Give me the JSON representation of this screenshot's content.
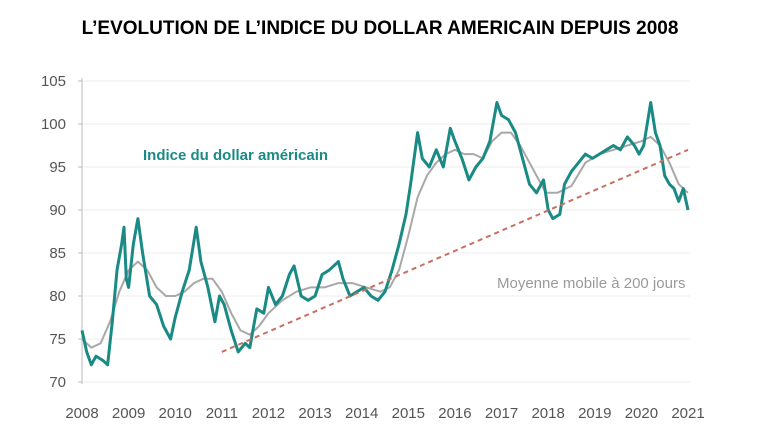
{
  "chart_data": {
    "type": "line",
    "title": "L’EVOLUTION DE L’INDICE DU DOLLAR AMERICAIN DEPUIS 2008",
    "xlabel": "",
    "ylabel": "",
    "xlim": [
      2008,
      2021
    ],
    "ylim": [
      70,
      105
    ],
    "x_ticks": [
      "2008",
      "2009",
      "2010",
      "2011",
      "2012",
      "2013",
      "2014",
      "2015",
      "2016",
      "2017",
      "2018",
      "2019",
      "2020",
      "2021"
    ],
    "y_ticks": [
      70,
      75,
      80,
      85,
      90,
      95,
      100,
      105
    ],
    "grid": "horizontal",
    "colors": {
      "index": "#1a8a85",
      "moving_average": "#a8a8a8",
      "trend": "#c87060"
    },
    "series": [
      {
        "name": "Indice du dollar américain",
        "points": [
          [
            2008.0,
            76
          ],
          [
            2008.1,
            73.5
          ],
          [
            2008.2,
            72
          ],
          [
            2008.3,
            73
          ],
          [
            2008.45,
            72.5
          ],
          [
            2008.55,
            72
          ],
          [
            2008.65,
            77
          ],
          [
            2008.75,
            83
          ],
          [
            2008.85,
            86
          ],
          [
            2008.9,
            88
          ],
          [
            2008.95,
            82
          ],
          [
            2009.0,
            81
          ],
          [
            2009.1,
            86
          ],
          [
            2009.2,
            89
          ],
          [
            2009.3,
            85
          ],
          [
            2009.45,
            80
          ],
          [
            2009.6,
            79
          ],
          [
            2009.75,
            76.5
          ],
          [
            2009.9,
            75
          ],
          [
            2010.0,
            77.5
          ],
          [
            2010.15,
            80.5
          ],
          [
            2010.3,
            83
          ],
          [
            2010.45,
            88
          ],
          [
            2010.55,
            84
          ],
          [
            2010.7,
            81
          ],
          [
            2010.85,
            77
          ],
          [
            2010.95,
            80
          ],
          [
            2011.05,
            79
          ],
          [
            2011.2,
            76
          ],
          [
            2011.35,
            73.5
          ],
          [
            2011.5,
            74.5
          ],
          [
            2011.6,
            74
          ],
          [
            2011.75,
            78.5
          ],
          [
            2011.9,
            78
          ],
          [
            2012.0,
            81
          ],
          [
            2012.15,
            79
          ],
          [
            2012.3,
            80
          ],
          [
            2012.45,
            82.5
          ],
          [
            2012.55,
            83.5
          ],
          [
            2012.7,
            80
          ],
          [
            2012.85,
            79.5
          ],
          [
            2013.0,
            80
          ],
          [
            2013.15,
            82.5
          ],
          [
            2013.3,
            83
          ],
          [
            2013.5,
            84
          ],
          [
            2013.6,
            82
          ],
          [
            2013.75,
            80
          ],
          [
            2013.9,
            80.5
          ],
          [
            2014.05,
            81
          ],
          [
            2014.2,
            80
          ],
          [
            2014.35,
            79.5
          ],
          [
            2014.5,
            80.5
          ],
          [
            2014.65,
            83
          ],
          [
            2014.8,
            86
          ],
          [
            2014.95,
            89.5
          ],
          [
            2015.05,
            93
          ],
          [
            2015.2,
            99
          ],
          [
            2015.3,
            96
          ],
          [
            2015.45,
            95
          ],
          [
            2015.6,
            97
          ],
          [
            2015.75,
            95
          ],
          [
            2015.9,
            99.5
          ],
          [
            2016.0,
            98
          ],
          [
            2016.15,
            96
          ],
          [
            2016.3,
            93.5
          ],
          [
            2016.45,
            95
          ],
          [
            2016.6,
            96
          ],
          [
            2016.75,
            98
          ],
          [
            2016.9,
            102.5
          ],
          [
            2017.0,
            101
          ],
          [
            2017.15,
            100.5
          ],
          [
            2017.3,
            99
          ],
          [
            2017.45,
            96
          ],
          [
            2017.6,
            93
          ],
          [
            2017.75,
            92
          ],
          [
            2017.9,
            93.5
          ],
          [
            2018.0,
            90
          ],
          [
            2018.1,
            89
          ],
          [
            2018.25,
            89.5
          ],
          [
            2018.35,
            93
          ],
          [
            2018.5,
            94.5
          ],
          [
            2018.65,
            95.5
          ],
          [
            2018.8,
            96.5
          ],
          [
            2018.95,
            96
          ],
          [
            2019.1,
            96.5
          ],
          [
            2019.25,
            97
          ],
          [
            2019.4,
            97.5
          ],
          [
            2019.55,
            97
          ],
          [
            2019.7,
            98.5
          ],
          [
            2019.85,
            97.5
          ],
          [
            2019.95,
            96.5
          ],
          [
            2020.05,
            97.5
          ],
          [
            2020.2,
            102.5
          ],
          [
            2020.3,
            99
          ],
          [
            2020.4,
            97.5
          ],
          [
            2020.5,
            94
          ],
          [
            2020.6,
            93
          ],
          [
            2020.7,
            92.5
          ],
          [
            2020.8,
            91
          ],
          [
            2020.9,
            92.5
          ],
          [
            2021.0,
            90
          ]
        ]
      },
      {
        "name": "Moyenne mobile à 200 jours",
        "points": [
          [
            2008.0,
            75
          ],
          [
            2008.2,
            74
          ],
          [
            2008.4,
            74.5
          ],
          [
            2008.6,
            77
          ],
          [
            2008.8,
            80.5
          ],
          [
            2009.0,
            83
          ],
          [
            2009.2,
            84
          ],
          [
            2009.4,
            83
          ],
          [
            2009.6,
            81
          ],
          [
            2009.8,
            80
          ],
          [
            2010.0,
            80
          ],
          [
            2010.2,
            80.5
          ],
          [
            2010.4,
            81.5
          ],
          [
            2010.6,
            82
          ],
          [
            2010.8,
            82
          ],
          [
            2011.0,
            80.5
          ],
          [
            2011.2,
            78
          ],
          [
            2011.4,
            76
          ],
          [
            2011.6,
            75.5
          ],
          [
            2011.8,
            76.5
          ],
          [
            2012.0,
            78
          ],
          [
            2012.3,
            79.5
          ],
          [
            2012.6,
            80.5
          ],
          [
            2012.9,
            81
          ],
          [
            2013.2,
            81
          ],
          [
            2013.5,
            81.5
          ],
          [
            2013.8,
            81.5
          ],
          [
            2014.1,
            81
          ],
          [
            2014.4,
            80.5
          ],
          [
            2014.6,
            81
          ],
          [
            2014.8,
            83
          ],
          [
            2015.0,
            87
          ],
          [
            2015.2,
            91.5
          ],
          [
            2015.4,
            94
          ],
          [
            2015.6,
            95.5
          ],
          [
            2015.8,
            96.5
          ],
          [
            2016.0,
            97
          ],
          [
            2016.2,
            96.5
          ],
          [
            2016.4,
            96.5
          ],
          [
            2016.6,
            96
          ],
          [
            2016.8,
            98
          ],
          [
            2017.0,
            99
          ],
          [
            2017.2,
            99
          ],
          [
            2017.4,
            97.5
          ],
          [
            2017.6,
            95.5
          ],
          [
            2017.8,
            93.5
          ],
          [
            2017.95,
            92
          ],
          [
            2018.2,
            92
          ],
          [
            2018.5,
            92.8
          ],
          [
            2018.8,
            95.5
          ],
          [
            2019.1,
            96.5
          ],
          [
            2019.4,
            97
          ],
          [
            2019.7,
            97.5
          ],
          [
            2020.0,
            98
          ],
          [
            2020.2,
            98.5
          ],
          [
            2020.4,
            97.5
          ],
          [
            2020.6,
            95.5
          ],
          [
            2020.8,
            93
          ],
          [
            2021.0,
            92
          ]
        ]
      },
      {
        "name": "",
        "style": "dashed",
        "points": [
          [
            2011.0,
            73.5
          ],
          [
            2021.0,
            97
          ]
        ]
      }
    ],
    "annotations": [
      "Indice du dollar américain",
      "Moyenne mobile à 200 jours"
    ]
  }
}
